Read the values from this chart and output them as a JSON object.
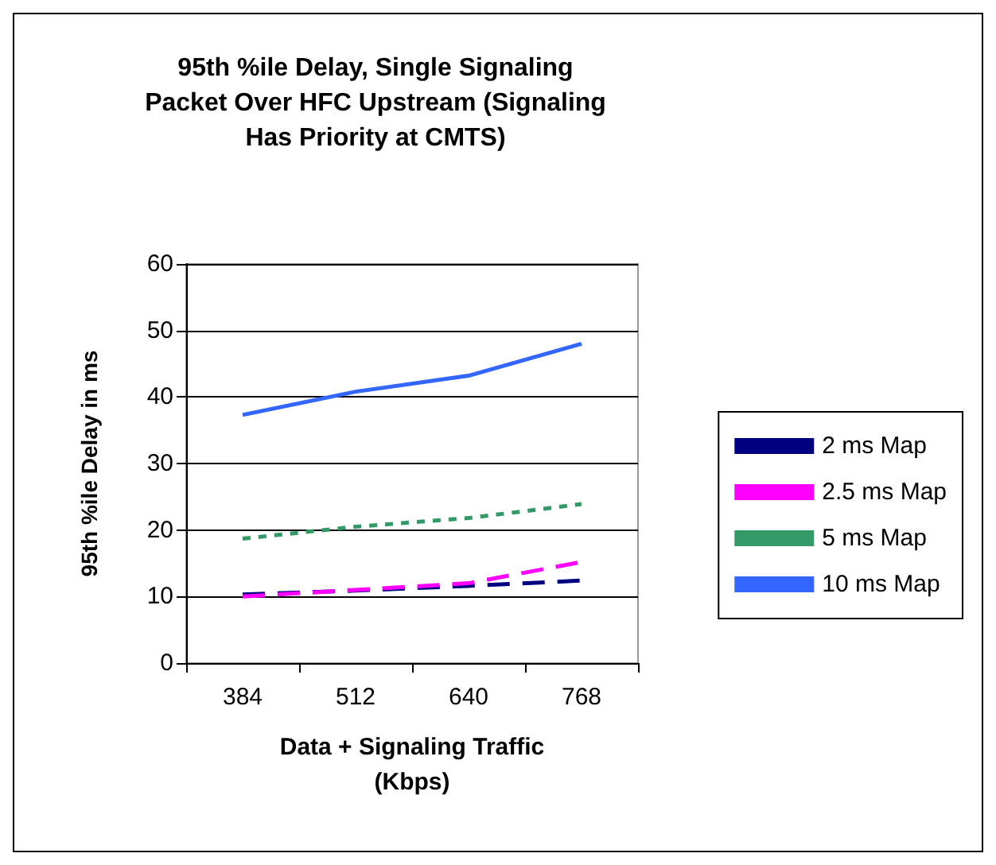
{
  "chart_data": {
    "type": "line",
    "title": "95th %ile Delay, Single Signaling\nPacket Over HFC Upstream (Signaling\nHas Priority at CMTS)",
    "xlabel": "Data + Signaling Traffic\n(Kbps)",
    "ylabel": "95th %ile Delay in ms",
    "categories": [
      "384",
      "512",
      "640",
      "768"
    ],
    "ylim": [
      0,
      60
    ],
    "yticks": [
      0,
      10,
      20,
      30,
      40,
      50,
      60
    ],
    "grid": "y",
    "legend": "right",
    "marker": "none",
    "series": [
      {
        "name": "2 ms Map",
        "color": "#000080",
        "line_style": "dashed",
        "values": [
          10.3,
          10.9,
          11.6,
          12.4
        ]
      },
      {
        "name": "2.5 ms Map",
        "color": "#ff00ff",
        "line_style": "dashed",
        "values": [
          10,
          11,
          12,
          15.2
        ]
      },
      {
        "name": "5 ms Map",
        "color": "#339966",
        "line_style": "dotted",
        "values": [
          18.7,
          20.5,
          21.8,
          23.9
        ]
      },
      {
        "name": "10 ms Map",
        "color": "#3366ff",
        "line_style": "solid",
        "values": [
          37.3,
          40.8,
          43.2,
          48
        ]
      }
    ]
  }
}
